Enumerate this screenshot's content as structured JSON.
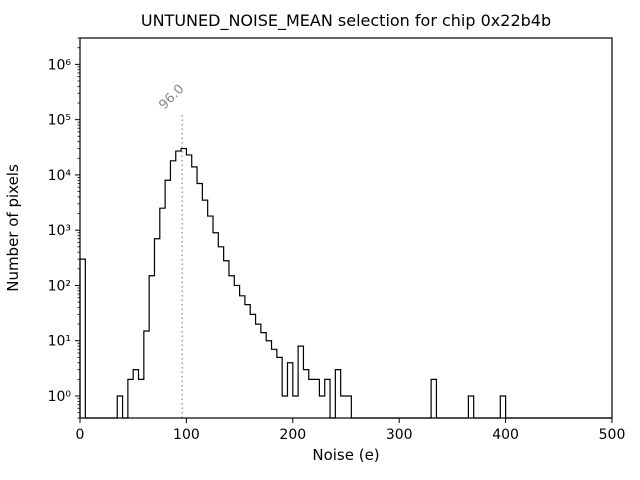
{
  "chart_data": {
    "type": "histogram",
    "title": "UNTUNED_NOISE_MEAN selection for chip 0x22b4b",
    "xlabel": "Noise (e)",
    "ylabel": "Number of pixels",
    "xlim": [
      0,
      500
    ],
    "ylim": [
      0.4,
      3000000
    ],
    "yscale": "log",
    "grid": false,
    "legend": null,
    "xticks": [
      0,
      100,
      200,
      300,
      400,
      500
    ],
    "ytick_labels": [
      "10⁰",
      "10¹",
      "10²",
      "10³",
      "10⁴",
      "10⁵",
      "10⁶"
    ],
    "ytick_exponents": [
      0,
      1,
      2,
      3,
      4,
      5,
      6
    ],
    "bin_width": 5,
    "bins": {
      "0": 300,
      "35": 1,
      "45": 2,
      "50": 3,
      "55": 2,
      "60": 15,
      "65": 150,
      "70": 700,
      "75": 2500,
      "80": 8000,
      "85": 18000,
      "90": 27000,
      "95": 30000,
      "100": 23000,
      "105": 14000,
      "110": 7000,
      "115": 3500,
      "120": 1800,
      "125": 900,
      "130": 500,
      "135": 280,
      "140": 150,
      "145": 100,
      "150": 65,
      "155": 45,
      "160": 30,
      "165": 20,
      "170": 14,
      "175": 10,
      "180": 7,
      "185": 5,
      "190": 1,
      "195": 4,
      "200": 1,
      "205": 8,
      "210": 3,
      "215": 2,
      "220": 2,
      "225": 1,
      "230": 2,
      "240": 3,
      "245": 1,
      "250": 1,
      "330": 2,
      "365": 1,
      "395": 1
    },
    "line_color": "#000000",
    "vline": {
      "x": 96.0,
      "label": "96.0",
      "color": "#999999",
      "style": "dotted"
    }
  }
}
